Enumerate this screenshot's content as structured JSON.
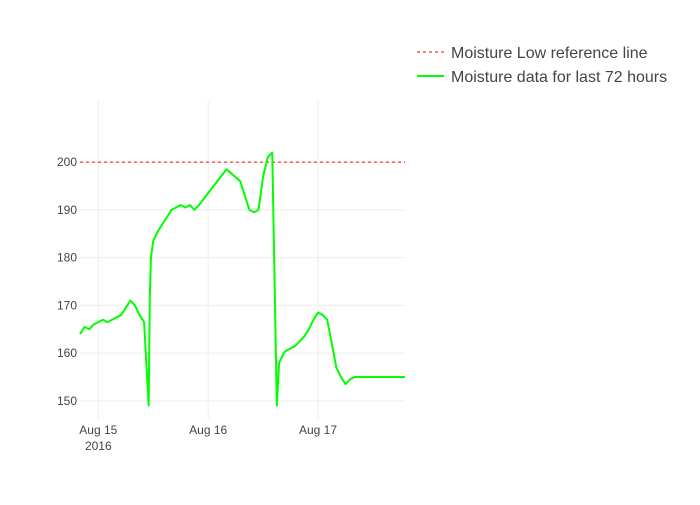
{
  "chart_data": {
    "type": "line",
    "title": "",
    "xlabel": "",
    "ylabel": "",
    "x_ticks": [
      {
        "date": "2016-08-15 00:00",
        "label": "Aug 15",
        "sublabel": "2016"
      },
      {
        "date": "2016-08-16 00:00",
        "label": "Aug 16",
        "sublabel": ""
      },
      {
        "date": "2016-08-17 00:00",
        "label": "Aug 17",
        "sublabel": ""
      }
    ],
    "y_ticks": [
      150,
      160,
      170,
      180,
      190,
      200
    ],
    "xlim": [
      "2016-08-14 20:00",
      "2016-08-17 19:00"
    ],
    "ylim": [
      146,
      213
    ],
    "grid": true,
    "legend_position": "top-right",
    "series": [
      {
        "name": "Moisture Low reference line",
        "color": "#ff0000",
        "dash": "dashed",
        "x": [
          "2016-08-14 20:00",
          "2016-08-17 19:00"
        ],
        "y": [
          200,
          200
        ]
      },
      {
        "name": "Moisture data for last 72 hours",
        "color": "#00ff00",
        "dash": "solid",
        "x": [
          "2016-08-14 20:00",
          "2016-08-14 21:00",
          "2016-08-14 22:00",
          "2016-08-14 23:00",
          "2016-08-15 00:00",
          "2016-08-15 01:00",
          "2016-08-15 02:00",
          "2016-08-15 03:00",
          "2016-08-15 04:00",
          "2016-08-15 05:00",
          "2016-08-15 06:00",
          "2016-08-15 07:00",
          "2016-08-15 08:00",
          "2016-08-15 09:00",
          "2016-08-15 10:00",
          "2016-08-15 11:00",
          "2016-08-15 11:15",
          "2016-08-15 11:30",
          "2016-08-15 12:00",
          "2016-08-15 13:00",
          "2016-08-15 14:00",
          "2016-08-15 15:00",
          "2016-08-15 16:00",
          "2016-08-15 17:00",
          "2016-08-15 18:00",
          "2016-08-15 19:00",
          "2016-08-15 20:00",
          "2016-08-15 21:00",
          "2016-08-15 22:00",
          "2016-08-16 04:00",
          "2016-08-16 07:00",
          "2016-08-16 08:00",
          "2016-08-16 09:00",
          "2016-08-16 10:00",
          "2016-08-16 11:00",
          "2016-08-16 12:00",
          "2016-08-16 13:00",
          "2016-08-16 14:00",
          "2016-08-16 15:00",
          "2016-08-16 15:30",
          "2016-08-16 16:00",
          "2016-08-16 16:15",
          "2016-08-16 16:30",
          "2016-08-16 17:00",
          "2016-08-16 18:00",
          "2016-08-16 19:00",
          "2016-08-16 20:00",
          "2016-08-16 21:00",
          "2016-08-16 22:00",
          "2016-08-16 23:00",
          "2016-08-17 00:00",
          "2016-08-17 01:00",
          "2016-08-17 02:00",
          "2016-08-17 03:00",
          "2016-08-17 04:00",
          "2016-08-17 05:00",
          "2016-08-17 06:00",
          "2016-08-17 07:00",
          "2016-08-17 08:00",
          "2016-08-17 09:00",
          "2016-08-17 10:00",
          "2016-08-17 11:00",
          "2016-08-17 12:00",
          "2016-08-17 13:00",
          "2016-08-17 14:00",
          "2016-08-17 15:00",
          "2016-08-17 15:30",
          "2016-08-17 16:00",
          "2016-08-17 17:00",
          "2016-08-17 18:00",
          "2016-08-17 19:00"
        ],
        "y": [
          164,
          165.5,
          165,
          166,
          166.5,
          167,
          166.5,
          167,
          167.5,
          168,
          169.5,
          171,
          170,
          168,
          166.5,
          149,
          172,
          180,
          183.5,
          185.5,
          187,
          188.5,
          190,
          190.5,
          191,
          190.5,
          191,
          190,
          191,
          198.5,
          196,
          193,
          190,
          189.5,
          190,
          197,
          201,
          202,
          149,
          158,
          159,
          159.5,
          160,
          160.5,
          161,
          161.5,
          162.5,
          163.5,
          165,
          167,
          168.5,
          168,
          167,
          162,
          157,
          155,
          153.5,
          154.5,
          155,
          155,
          155,
          155,
          155,
          155,
          155,
          155,
          155,
          155,
          155,
          155,
          155
        ]
      }
    ]
  }
}
